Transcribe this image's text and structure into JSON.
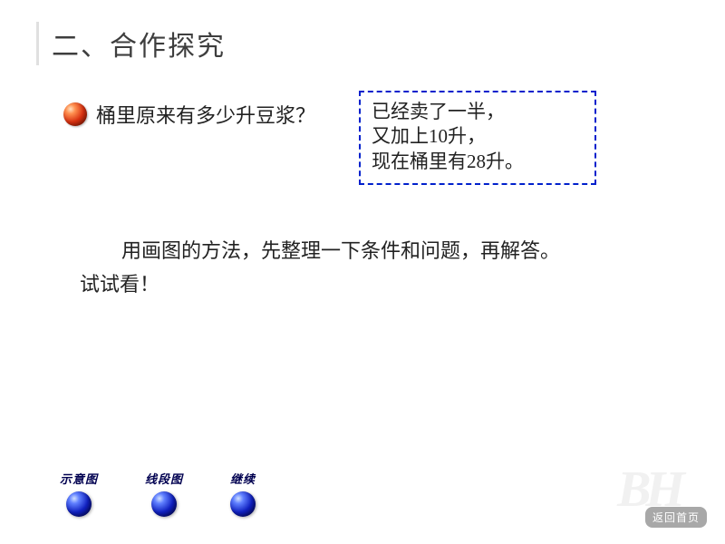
{
  "header": {
    "title": "二、合作探究",
    "title_fontsize": 30,
    "title_color": "#3e3e3e",
    "bar_color": "#e0e0e0"
  },
  "question": {
    "text": "桶里原来有多少升豆浆？",
    "fontsize": 22,
    "bullet_color": "#d83010"
  },
  "info_box": {
    "lines": [
      "已经卖了一半，",
      "又加上10升，",
      "现在桶里有28升。"
    ],
    "fontsize": 21,
    "border_color": "#0020cc",
    "border_style": "dashed"
  },
  "instruction": {
    "line1": "用画图的方法，先整理一下条件和问题，再解答。",
    "line2": "试试看！",
    "fontsize": 22
  },
  "buttons": [
    {
      "label": "示意图",
      "id": "schematic"
    },
    {
      "label": "线段图",
      "id": "line-diagram"
    },
    {
      "label": "继续",
      "id": "continue"
    }
  ],
  "button_style": {
    "ball_color": "#1020c0",
    "label_fontsize": 13,
    "label_color": "#000050"
  },
  "back_home": {
    "label": "返回首页",
    "bg_color": "#a8a8a8",
    "text_color": "#ffffff"
  },
  "watermark": {
    "text": "BH"
  },
  "background_color": "#ffffff"
}
